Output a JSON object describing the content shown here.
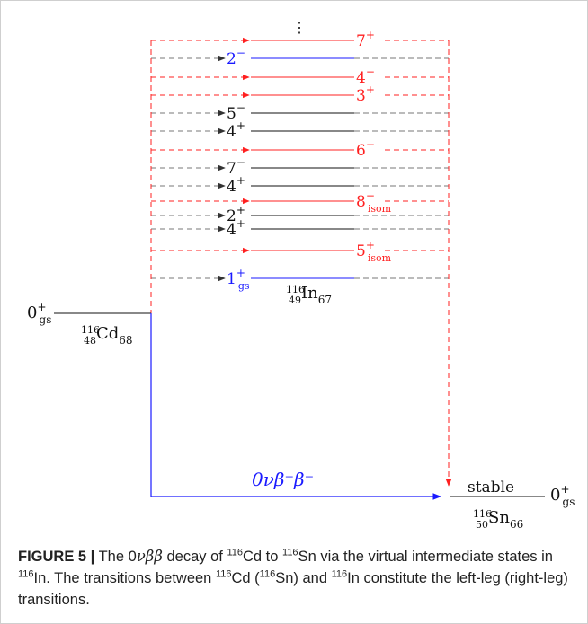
{
  "colors": {
    "red": "#ff2020",
    "blue": "#1a1aff",
    "gray": "#777777",
    "black": "#111111"
  },
  "diagram": {
    "ellipsis": "⋮",
    "parent": {
      "level_label": "0",
      "level_sup": "+",
      "level_sub": "gs",
      "nucleus_element": "Cd",
      "nucleus_mass": "116",
      "nucleus_Z": "48",
      "nucleus_N": "68"
    },
    "intermediate": {
      "nucleus_element": "In",
      "nucleus_mass": "116",
      "nucleus_Z": "49",
      "nucleus_N": "67"
    },
    "daughter": {
      "level_label": "0",
      "level_sup": "+",
      "level_sub": "gs",
      "stable_label": "stable",
      "nucleus_element": "Sn",
      "nucleus_mass": "116",
      "nucleus_Z": "50",
      "nucleus_N": "66"
    },
    "decay_label": "0νβ⁻β⁻",
    "states": [
      {
        "spin": "7",
        "parity": "+",
        "sub": "",
        "color": "red",
        "label_side": "right"
      },
      {
        "spin": "2",
        "parity": "−",
        "sub": "",
        "color": "blue",
        "label_side": "left"
      },
      {
        "spin": "4",
        "parity": "−",
        "sub": "",
        "color": "red",
        "label_side": "right"
      },
      {
        "spin": "3",
        "parity": "+",
        "sub": "",
        "color": "red",
        "label_side": "right"
      },
      {
        "spin": "5",
        "parity": "−",
        "sub": "",
        "color": "gray",
        "label_side": "left"
      },
      {
        "spin": "4",
        "parity": "+",
        "sub": "",
        "color": "gray",
        "label_side": "left"
      },
      {
        "spin": "6",
        "parity": "−",
        "sub": "",
        "color": "red",
        "label_side": "right"
      },
      {
        "spin": "7",
        "parity": "−",
        "sub": "",
        "color": "gray",
        "label_side": "left"
      },
      {
        "spin": "4",
        "parity": "+",
        "sub": "",
        "color": "gray",
        "label_side": "left"
      },
      {
        "spin": "8",
        "parity": "−",
        "sub": "isom",
        "color": "red",
        "label_side": "right"
      },
      {
        "spin": "2",
        "parity": "+",
        "sub": "",
        "color": "gray",
        "label_side": "left"
      },
      {
        "spin": "4",
        "parity": "+",
        "sub": "",
        "color": "gray",
        "label_side": "left"
      },
      {
        "spin": "5",
        "parity": "+",
        "sub": "isom",
        "color": "red",
        "label_side": "right"
      },
      {
        "spin": "1",
        "parity": "+",
        "sub": "gs",
        "color": "blue",
        "label_side": "left"
      }
    ]
  },
  "caption": {
    "figure_label": "FIGURE 5 |",
    "t1": " The 0",
    "t1_sym": "νββ",
    "t2": " decay of ",
    "t2_sup": "116",
    "t3": "Cd to ",
    "t3_sup": "116",
    "t4": "Sn via the virtual intermediate states in ",
    "t4_sup": "116",
    "t5": "In. The transitions between ",
    "t5_sup": "116",
    "t6": "Cd (",
    "t6_sup": "116",
    "t7": "Sn) and ",
    "t7_sup": "116",
    "t8": "In constitute the left-leg (right-leg) transitions."
  }
}
